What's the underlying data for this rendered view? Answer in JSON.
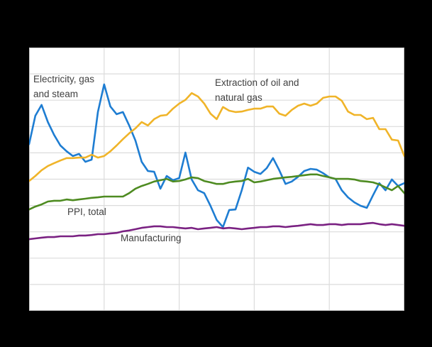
{
  "page_background": "#000000",
  "chart_data": {
    "type": "line",
    "title": "",
    "xlabel": "",
    "ylabel": "",
    "axis_tick_labels_visible": false,
    "grid": true,
    "x_divisions": 5,
    "y_divisions": 10,
    "ylim": [
      0,
      10
    ],
    "y_unit": "gridline-units (no axis labels visible in image)",
    "x_index_range": [
      0,
      60
    ],
    "plot_background": "#ffffff",
    "grid_color": "#dcdcdc",
    "border_color": "#c9c9c9",
    "label_text_color": "#404040",
    "labels": {
      "electricity": [
        "Electricity, gas",
        "and steam"
      ],
      "extraction": [
        "Extraction of oil and",
        "natural gas"
      ],
      "ppi": "PPI, total",
      "manufacturing": "Manufacturing"
    },
    "series": [
      {
        "id": "electricity-gas-and-steam",
        "name": "Electricity, gas and steam",
        "color": "#1e7dd2",
        "values": [
          6.33,
          7.41,
          7.82,
          7.17,
          6.68,
          6.28,
          6.06,
          5.88,
          5.96,
          5.66,
          5.74,
          7.55,
          8.6,
          7.76,
          7.47,
          7.55,
          7.04,
          6.47,
          5.66,
          5.31,
          5.28,
          4.64,
          5.12,
          4.96,
          5.04,
          6.01,
          4.99,
          4.58,
          4.47,
          3.99,
          3.45,
          3.18,
          3.83,
          3.85,
          4.58,
          5.44,
          5.28,
          5.2,
          5.42,
          5.8,
          5.34,
          4.82,
          4.91,
          5.09,
          5.31,
          5.39,
          5.36,
          5.23,
          5.07,
          5.01,
          4.58,
          4.31,
          4.12,
          3.99,
          3.91,
          4.39,
          4.85,
          4.58,
          4.99,
          4.74,
          4.85
        ]
      },
      {
        "id": "extraction-of-oil-and-natural-gas",
        "name": "Extraction of oil and natural gas",
        "color": "#f0b429",
        "values": [
          4.93,
          5.12,
          5.34,
          5.5,
          5.61,
          5.71,
          5.8,
          5.8,
          5.82,
          5.82,
          5.93,
          5.82,
          5.88,
          6.06,
          6.28,
          6.52,
          6.74,
          6.93,
          7.17,
          7.04,
          7.28,
          7.41,
          7.44,
          7.68,
          7.87,
          8.01,
          8.27,
          8.14,
          7.87,
          7.49,
          7.28,
          7.74,
          7.6,
          7.55,
          7.57,
          7.63,
          7.68,
          7.68,
          7.76,
          7.76,
          7.49,
          7.41,
          7.63,
          7.79,
          7.87,
          7.79,
          7.87,
          8.09,
          8.14,
          8.14,
          7.98,
          7.57,
          7.44,
          7.44,
          7.28,
          7.33,
          6.9,
          6.9,
          6.5,
          6.47,
          5.88
        ]
      },
      {
        "id": "ppi-total",
        "name": "PPI, total",
        "color": "#4e8b21",
        "values": [
          3.85,
          3.96,
          4.04,
          4.15,
          4.18,
          4.18,
          4.23,
          4.2,
          4.23,
          4.26,
          4.29,
          4.31,
          4.34,
          4.34,
          4.34,
          4.34,
          4.47,
          4.64,
          4.74,
          4.82,
          4.91,
          4.96,
          5.01,
          4.91,
          4.93,
          4.99,
          5.07,
          5.04,
          4.93,
          4.88,
          4.82,
          4.82,
          4.88,
          4.91,
          4.93,
          5.01,
          4.88,
          4.91,
          4.96,
          5.01,
          5.04,
          5.07,
          5.09,
          5.12,
          5.15,
          5.18,
          5.18,
          5.12,
          5.07,
          5.01,
          5.01,
          5.01,
          4.99,
          4.93,
          4.91,
          4.88,
          4.8,
          4.69,
          4.58,
          4.74,
          4.47
        ]
      },
      {
        "id": "manufacturing",
        "name": "Manufacturing",
        "color": "#7a2182",
        "values": [
          2.72,
          2.75,
          2.78,
          2.8,
          2.8,
          2.83,
          2.83,
          2.83,
          2.86,
          2.86,
          2.88,
          2.91,
          2.91,
          2.94,
          2.96,
          3.02,
          3.05,
          3.1,
          3.15,
          3.18,
          3.21,
          3.21,
          3.18,
          3.18,
          3.15,
          3.13,
          3.15,
          3.1,
          3.13,
          3.15,
          3.18,
          3.13,
          3.15,
          3.13,
          3.1,
          3.13,
          3.15,
          3.18,
          3.18,
          3.21,
          3.21,
          3.18,
          3.21,
          3.23,
          3.26,
          3.29,
          3.26,
          3.26,
          3.29,
          3.29,
          3.26,
          3.29,
          3.29,
          3.29,
          3.32,
          3.34,
          3.29,
          3.26,
          3.29,
          3.26,
          3.23
        ]
      }
    ]
  }
}
